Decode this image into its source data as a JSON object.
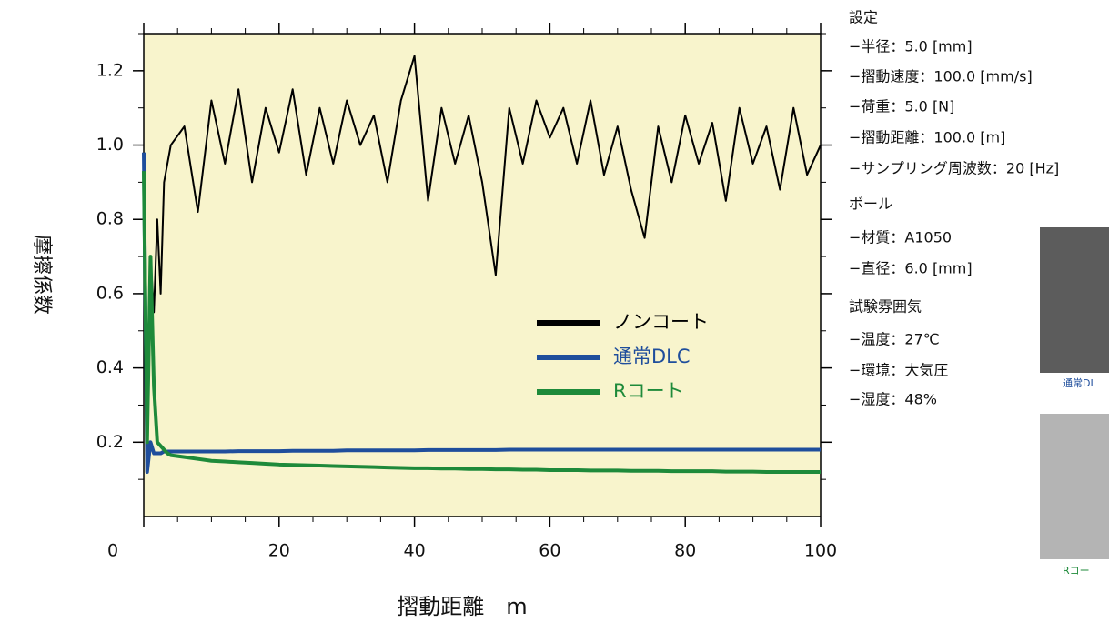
{
  "chart_data": {
    "type": "line",
    "ylabel": "摩擦係数",
    "xlabel": "摺動距離　m",
    "x": [
      0,
      0.5,
      1,
      1.5,
      2,
      2.5,
      3,
      3.5,
      4,
      6,
      8,
      10,
      12,
      14,
      16,
      18,
      20,
      22,
      24,
      26,
      28,
      30,
      32,
      34,
      36,
      38,
      40,
      42,
      44,
      46,
      48,
      50,
      52,
      54,
      56,
      58,
      60,
      62,
      64,
      66,
      68,
      70,
      72,
      74,
      76,
      78,
      80,
      82,
      84,
      86,
      88,
      90,
      92,
      94,
      96,
      98,
      100
    ],
    "series": [
      {
        "name": "ノンコート",
        "color": "#000000",
        "values": [
          0.98,
          0.3,
          0.7,
          0.55,
          0.8,
          0.6,
          0.9,
          0.95,
          1.0,
          1.05,
          0.82,
          1.12,
          0.95,
          1.15,
          0.9,
          1.1,
          0.98,
          1.15,
          0.92,
          1.1,
          0.95,
          1.12,
          1.0,
          1.08,
          0.9,
          1.12,
          1.24,
          0.85,
          1.1,
          0.95,
          1.08,
          0.9,
          0.65,
          1.1,
          0.95,
          1.12,
          1.02,
          1.1,
          0.95,
          1.12,
          0.92,
          1.05,
          0.88,
          0.75,
          1.05,
          0.9,
          1.08,
          0.95,
          1.06,
          0.85,
          1.1,
          0.95,
          1.05,
          0.88,
          1.1,
          0.92,
          1.0
        ]
      },
      {
        "name": "通常DLC",
        "color": "#1f4e9c",
        "values": [
          0.98,
          0.12,
          0.2,
          0.17,
          0.17,
          0.17,
          0.175,
          0.175,
          0.175,
          0.175,
          0.175,
          0.175,
          0.175,
          0.176,
          0.176,
          0.176,
          0.176,
          0.177,
          0.177,
          0.177,
          0.177,
          0.178,
          0.178,
          0.178,
          0.178,
          0.178,
          0.178,
          0.179,
          0.179,
          0.179,
          0.179,
          0.179,
          0.179,
          0.18,
          0.18,
          0.18,
          0.18,
          0.18,
          0.18,
          0.18,
          0.18,
          0.18,
          0.18,
          0.18,
          0.18,
          0.18,
          0.18,
          0.18,
          0.18,
          0.18,
          0.18,
          0.18,
          0.18,
          0.18,
          0.18,
          0.18,
          0.18
        ]
      },
      {
        "name": "Rコート",
        "color": "#1e8a3a",
        "values": [
          0.93,
          0.2,
          0.7,
          0.35,
          0.2,
          0.19,
          0.18,
          0.17,
          0.165,
          0.16,
          0.155,
          0.15,
          0.148,
          0.146,
          0.144,
          0.142,
          0.14,
          0.139,
          0.138,
          0.137,
          0.136,
          0.135,
          0.134,
          0.133,
          0.132,
          0.131,
          0.13,
          0.13,
          0.129,
          0.129,
          0.128,
          0.128,
          0.127,
          0.127,
          0.126,
          0.126,
          0.125,
          0.125,
          0.125,
          0.124,
          0.124,
          0.124,
          0.123,
          0.123,
          0.123,
          0.122,
          0.122,
          0.122,
          0.122,
          0.121,
          0.121,
          0.121,
          0.12,
          0.12,
          0.12,
          0.12,
          0.12
        ]
      }
    ],
    "xlim": [
      0,
      100
    ],
    "xticks": [
      0,
      20,
      40,
      60,
      80,
      100
    ],
    "ylim": [
      0,
      1.3
    ],
    "yticks": [
      0.2,
      0.4,
      0.6,
      {
        "value": 1,
        "label": "1.0"
      },
      0.8,
      1.2
    ],
    "legend": "center",
    "background": "#f8f4cc"
  },
  "side_panel": {
    "lines": [
      "設定",
      "−半径：5.0 [mm]",
      "−摺動速度：100.0 [mm/s]",
      "−荷重：5.0 [N]",
      "−摺動距離：100.0 [m]",
      "−サンプリング周波数：20 [Hz]",
      "ボール",
      "−材質：A1050",
      "−直径：6.0 [mm]",
      "試験雰囲気",
      "−温度：27℃",
      "−環境：大気圧",
      "−湿度：48%"
    ],
    "images": [
      {
        "caption": "通常DL",
        "color": "#1f4e9c"
      },
      {
        "caption": "Rコー",
        "color": "#1e8a3a"
      }
    ]
  }
}
